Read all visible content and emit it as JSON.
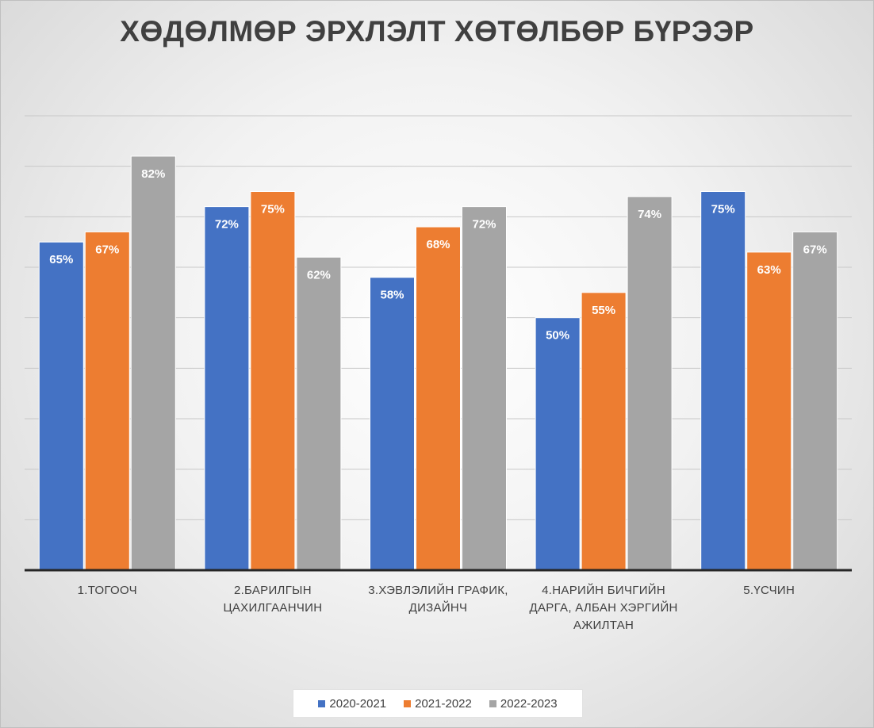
{
  "chart_data": {
    "type": "bar",
    "title": "ХӨДӨЛМӨР ЭРХЛЭЛТ ХӨТӨЛБӨР БҮРЭЭР",
    "categories": [
      [
        "1.ТОГООЧ"
      ],
      [
        "2.БАРИЛГЫН",
        "ЦАХИЛГААНЧИН"
      ],
      [
        "3.ХЭВЛЭЛИЙН ГРАФИК,",
        "ДИЗАЙНЧ"
      ],
      [
        "4.НАРИЙН БИЧГИЙН",
        "ДАРГА, АЛБАН ХЭРГИЙН",
        "АЖИЛТАН"
      ],
      [
        "5.ҮСЧИН"
      ]
    ],
    "series": [
      {
        "name": "2020-2021",
        "color": "#4472c4",
        "values": [
          65,
          72,
          58,
          50,
          75
        ],
        "labels": [
          "65%",
          "72%",
          "58%",
          "50%",
          "75%"
        ]
      },
      {
        "name": "2021-2022",
        "color": "#ed7d31",
        "values": [
          67,
          75,
          68,
          55,
          63
        ],
        "labels": [
          "67%",
          "75%",
          "68%",
          "55%",
          "63%"
        ]
      },
      {
        "name": "2022-2023",
        "color": "#a5a5a5",
        "values": [
          82,
          62,
          72,
          74,
          67
        ],
        "labels": [
          "82%",
          "62%",
          "72%",
          "74%",
          "67%"
        ]
      }
    ],
    "ylim": [
      0,
      90
    ],
    "grid": true,
    "legend": "bottom"
  }
}
